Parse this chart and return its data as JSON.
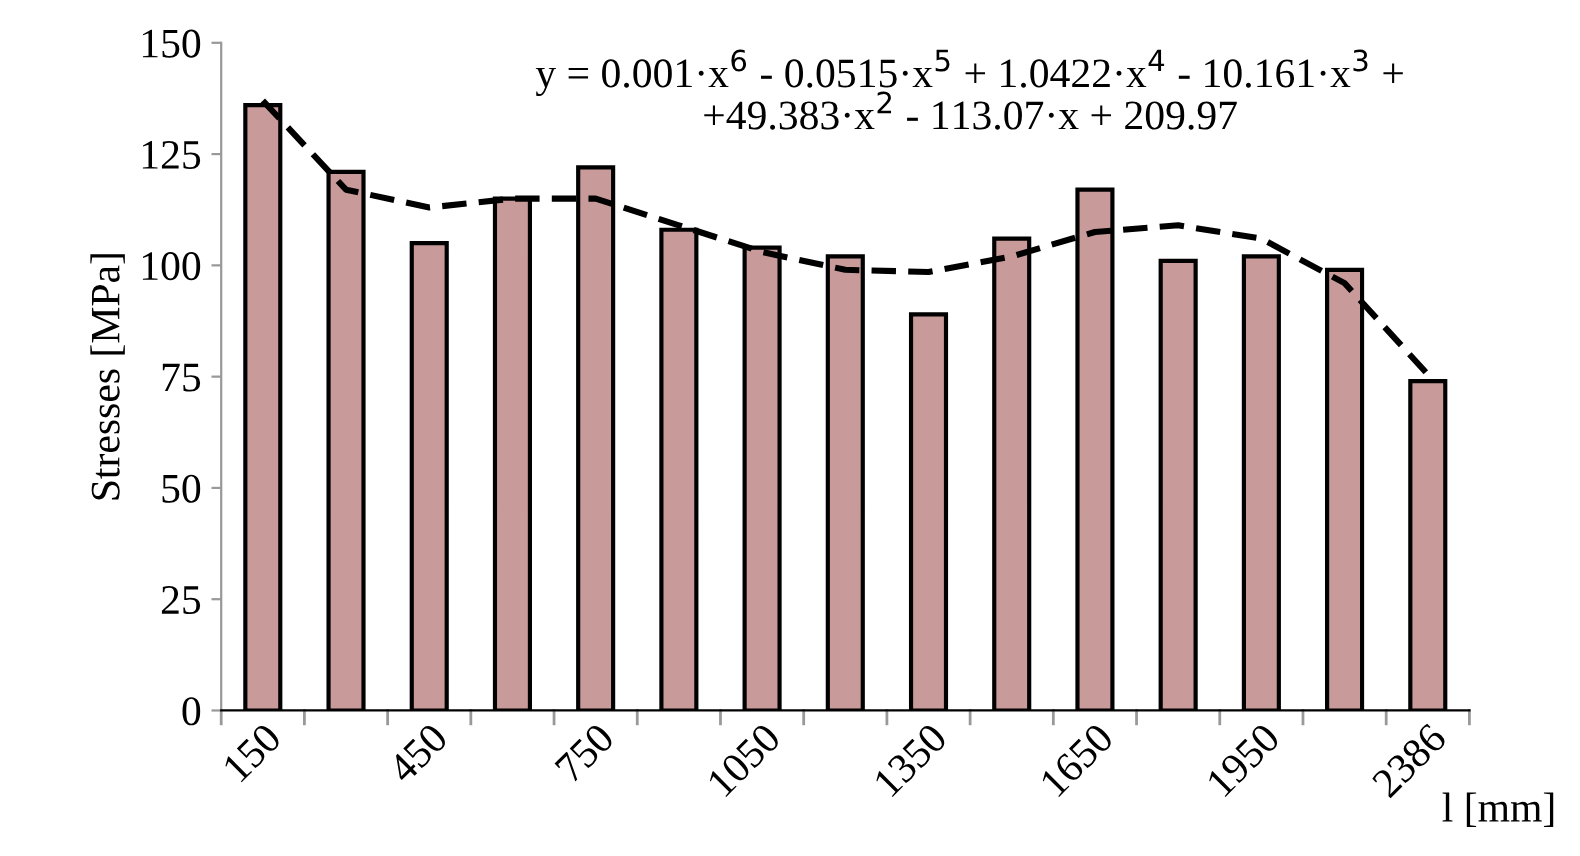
{
  "chart_data": {
    "type": "bar",
    "ylabel": "Stresses [MPa]",
    "xlabel": "l [mm]",
    "categories": [
      "150",
      null,
      "450",
      null,
      "750",
      null,
      "1050",
      null,
      "1350",
      null,
      "1650",
      null,
      "1950",
      null,
      "2386"
    ],
    "series": [
      {
        "color": "#c99a9a",
        "values": [
          136,
          121,
          105,
          115,
          122,
          108,
          104,
          102,
          89,
          106,
          117,
          101,
          102,
          99,
          74
        ]
      },
      {
        "type": "line",
        "color": "#000000",
        "line_style": "dashed",
        "values": [
          137,
          117,
          113,
          115,
          115,
          109,
          103,
          99,
          98.5,
          102,
          107.5,
          109,
          106,
          96,
          75.5
        ]
      }
    ],
    "ylim": [
      0,
      150
    ],
    "yticks": [
      0,
      25,
      50,
      75,
      100,
      125,
      150
    ],
    "grid": false,
    "legend": false,
    "annotations": [
      "y = 0.001·x$^{6}$ - 0.0515·x$^{5}$ + 1.0422·x$^{4}$ - 10.161·x$^{3}$ +\n+49.383·x$^{2}$ - 113.07·x + 209.97"
    ]
  }
}
